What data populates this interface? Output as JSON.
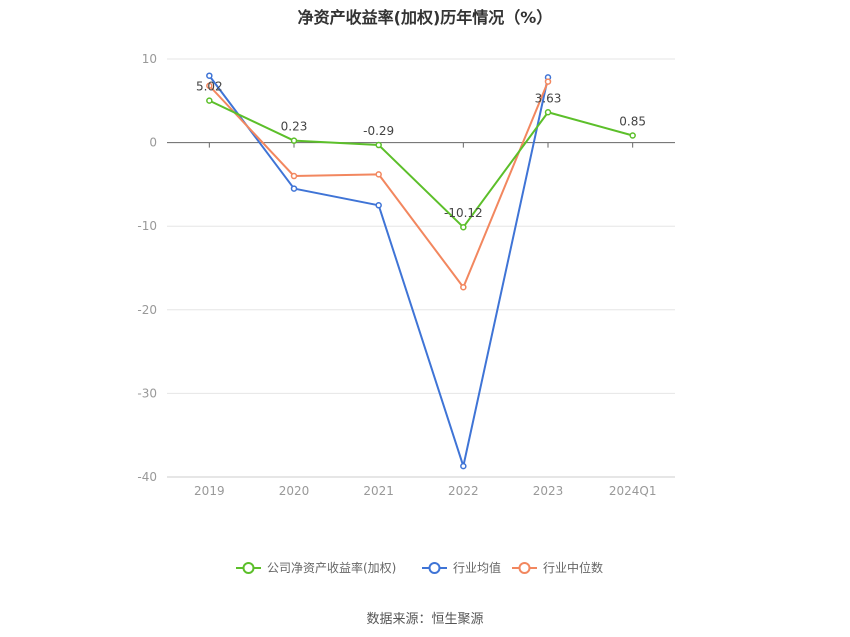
{
  "chart_data": {
    "type": "line",
    "title": "净资产收益率(加权)历年情况（%）",
    "categories": [
      "2019",
      "2020",
      "2021",
      "2022",
      "2023",
      "2024Q1"
    ],
    "ylim": [
      -40,
      10
    ],
    "yticks": [
      "10",
      "0",
      "-10",
      "-20",
      "-30",
      "-40"
    ],
    "ytick_values": [
      10,
      0,
      -10,
      -20,
      -30,
      -40
    ],
    "grid": true,
    "legend_position": "bottom",
    "series": [
      {
        "name": "公司净资产收益率(加权)",
        "color": "#5cbf2a",
        "values": [
          5.02,
          0.23,
          -0.29,
          -10.12,
          3.63,
          0.85
        ],
        "labels": [
          "5.02",
          "0.23",
          "-0.29",
          "-10.12",
          "3.63",
          "0.85"
        ]
      },
      {
        "name": "行业均值",
        "color": "#3f74d6",
        "values": [
          8.0,
          -5.5,
          -7.5,
          -38.7,
          7.8,
          null
        ]
      },
      {
        "name": "行业中位数",
        "color": "#f2875f",
        "values": [
          6.8,
          -4.0,
          -3.8,
          -17.3,
          7.3,
          null
        ]
      }
    ]
  },
  "footer": {
    "source": "数据来源：恒生聚源"
  }
}
